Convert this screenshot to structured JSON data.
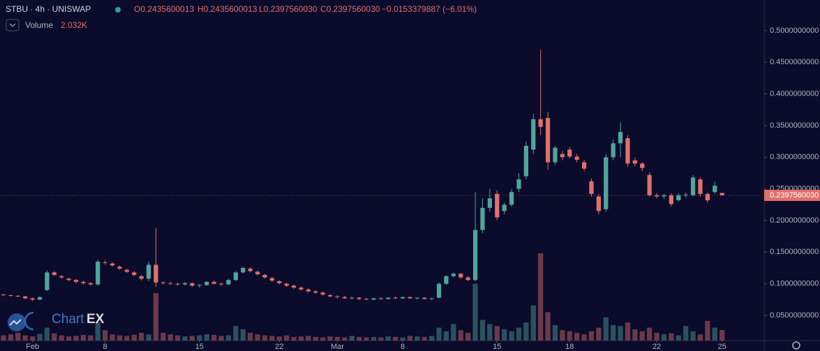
{
  "chart_data": {
    "type": "candlestick",
    "header": {
      "symbol": "STBU · 4h · UNISWAP",
      "ohlc": [
        "O0.2435600013",
        "H0.2435600013",
        "L0.2397560030",
        "C0.2397560030"
      ],
      "change": "−0.0153379887 (−6.01%)",
      "volume_name": "Volume",
      "volume_label": "2.032K"
    },
    "watermark": [
      "Chart",
      "EX"
    ],
    "up_color": "#4fa69b",
    "down_color": "#e0706a",
    "open": [
      0.083,
      0.082,
      0.081,
      0.08,
      0.077,
      0.075,
      0.09,
      0.118,
      0.112,
      0.108,
      0.106,
      0.103,
      0.101,
      0.099,
      0.134,
      0.132,
      0.127,
      0.122,
      0.118,
      0.112,
      0.108,
      0.13,
      0.102,
      0.101,
      0.1,
      0.099,
      0.101,
      0.097,
      0.098,
      0.103,
      0.1,
      0.099,
      0.106,
      0.118,
      0.124,
      0.119,
      0.114,
      0.109,
      0.104,
      0.1,
      0.097,
      0.094,
      0.091,
      0.088,
      0.086,
      0.082,
      0.08,
      0.079,
      0.077,
      0.078,
      0.076,
      0.075,
      0.077,
      0.076,
      0.078,
      0.077,
      0.079,
      0.077,
      0.078,
      0.076,
      0.078,
      0.1,
      0.112,
      0.116,
      0.11,
      0.106,
      0.185,
      0.22,
      0.242,
      0.215,
      0.225,
      0.25,
      0.27,
      0.312,
      0.36,
      0.362,
      0.292,
      0.305,
      0.312,
      0.301,
      0.292,
      0.262,
      0.238,
      0.218,
      0.3,
      0.322,
      0.33,
      0.295,
      0.29,
      0.272,
      0.24,
      0.238,
      0.24,
      0.232,
      0.24,
      0.24,
      0.265,
      0.242,
      0.245,
      0.2435600013
    ],
    "high": [
      0.084,
      0.083,
      0.082,
      0.081,
      0.078,
      0.08,
      0.121,
      0.12,
      0.114,
      0.11,
      0.108,
      0.105,
      0.103,
      0.138,
      0.137,
      0.134,
      0.129,
      0.124,
      0.12,
      0.114,
      0.135,
      0.188,
      0.104,
      0.103,
      0.102,
      0.103,
      0.102,
      0.1,
      0.104,
      0.105,
      0.102,
      0.108,
      0.12,
      0.127,
      0.126,
      0.121,
      0.116,
      0.111,
      0.106,
      0.102,
      0.099,
      0.096,
      0.093,
      0.09,
      0.088,
      0.084,
      0.082,
      0.081,
      0.08,
      0.079,
      0.078,
      0.078,
      0.079,
      0.079,
      0.08,
      0.08,
      0.08,
      0.079,
      0.079,
      0.078,
      0.102,
      0.114,
      0.118,
      0.117,
      0.112,
      0.245,
      0.235,
      0.25,
      0.248,
      0.228,
      0.25,
      0.275,
      0.325,
      0.368,
      0.47,
      0.372,
      0.318,
      0.31,
      0.316,
      0.305,
      0.296,
      0.266,
      0.242,
      0.305,
      0.328,
      0.355,
      0.335,
      0.3,
      0.292,
      0.276,
      0.243,
      0.242,
      0.243,
      0.243,
      0.244,
      0.272,
      0.268,
      0.244,
      0.262,
      0.2435600013
    ],
    "low": [
      0.081,
      0.08,
      0.079,
      0.076,
      0.073,
      0.074,
      0.088,
      0.112,
      0.108,
      0.104,
      0.101,
      0.099,
      0.097,
      0.097,
      0.13,
      0.127,
      0.122,
      0.117,
      0.112,
      0.105,
      0.104,
      0.095,
      0.099,
      0.098,
      0.097,
      0.097,
      0.095,
      0.094,
      0.097,
      0.099,
      0.097,
      0.098,
      0.104,
      0.116,
      0.118,
      0.113,
      0.108,
      0.103,
      0.099,
      0.095,
      0.092,
      0.089,
      0.086,
      0.084,
      0.081,
      0.079,
      0.077,
      0.076,
      0.075,
      0.074,
      0.074,
      0.074,
      0.075,
      0.075,
      0.076,
      0.076,
      0.076,
      0.075,
      0.075,
      0.074,
      0.077,
      0.098,
      0.11,
      0.108,
      0.104,
      0.104,
      0.18,
      0.214,
      0.2,
      0.21,
      0.222,
      0.245,
      0.265,
      0.305,
      0.335,
      0.28,
      0.288,
      0.295,
      0.298,
      0.292,
      0.278,
      0.238,
      0.21,
      0.214,
      0.295,
      0.3,
      0.285,
      0.286,
      0.278,
      0.238,
      0.235,
      0.234,
      0.222,
      0.23,
      0.236,
      0.238,
      0.238,
      0.228,
      0.242,
      0.239756003
    ],
    "close": [
      0.082,
      0.081,
      0.08,
      0.077,
      0.075,
      0.079,
      0.118,
      0.114,
      0.11,
      0.106,
      0.103,
      0.101,
      0.099,
      0.135,
      0.133,
      0.129,
      0.124,
      0.119,
      0.114,
      0.108,
      0.13,
      0.102,
      0.101,
      0.1,
      0.099,
      0.101,
      0.097,
      0.098,
      0.103,
      0.1,
      0.099,
      0.106,
      0.118,
      0.125,
      0.12,
      0.115,
      0.11,
      0.105,
      0.101,
      0.097,
      0.094,
      0.091,
      0.088,
      0.086,
      0.083,
      0.08,
      0.079,
      0.077,
      0.078,
      0.076,
      0.075,
      0.077,
      0.076,
      0.078,
      0.077,
      0.079,
      0.077,
      0.078,
      0.076,
      0.077,
      0.1,
      0.112,
      0.116,
      0.11,
      0.106,
      0.185,
      0.22,
      0.235,
      0.205,
      0.225,
      0.245,
      0.265,
      0.318,
      0.36,
      0.348,
      0.292,
      0.315,
      0.3,
      0.301,
      0.296,
      0.282,
      0.242,
      0.215,
      0.3,
      0.322,
      0.34,
      0.29,
      0.29,
      0.283,
      0.24,
      0.238,
      0.24,
      0.226,
      0.24,
      0.241,
      0.268,
      0.242,
      0.232,
      0.255,
      0.239756003
    ],
    "volume": [
      1.0,
      1.2,
      1.5,
      1.0,
      0.8,
      1.3,
      2.5,
      1.4,
      1.0,
      0.8,
      0.9,
      1.1,
      1.0,
      3.5,
      2.0,
      1.2,
      1.0,
      0.9,
      1.1,
      1.5,
      1.2,
      9.2,
      1.5,
      1.2,
      1.0,
      0.8,
      0.9,
      1.0,
      1.2,
      1.1,
      0.9,
      1.0,
      2.8,
      2.2,
      1.5,
      1.2,
      1.0,
      0.9,
      0.8,
      1.0,
      0.7,
      0.8,
      0.9,
      0.7,
      0.6,
      0.8,
      0.7,
      0.6,
      0.9,
      0.7,
      0.6,
      0.7,
      0.6,
      0.8,
      0.7,
      0.6,
      0.9,
      0.8,
      0.7,
      0.9,
      2.5,
      1.8,
      3.2,
      2.0,
      1.5,
      11.0,
      4.0,
      3.2,
      2.8,
      2.2,
      1.8,
      2.5,
      3.5,
      6.8,
      16.9,
      5.5,
      3.0,
      2.0,
      1.8,
      1.5,
      1.2,
      1.8,
      2.5,
      4.5,
      3.0,
      2.8,
      3.5,
      2.2,
      1.8,
      2.5,
      1.5,
      1.2,
      1.4,
      1.0,
      2.8,
      1.8,
      1.2,
      3.8,
      2.5,
      2.032
    ],
    "xlim": [
      -0.48,
      104.8
    ],
    "xticks": [
      {
        "value": 4,
        "label": "Feb"
      },
      {
        "value": 14,
        "label": "8"
      },
      {
        "value": 27,
        "label": "15"
      },
      {
        "value": 38,
        "label": "22"
      },
      {
        "value": 46,
        "label": "Mar"
      },
      {
        "value": 55,
        "label": "8"
      },
      {
        "value": 68,
        "label": "15"
      },
      {
        "value": 78,
        "label": "18"
      },
      {
        "value": 90,
        "label": "22"
      },
      {
        "value": 99,
        "label": "25"
      }
    ],
    "ylim": [
      0.0103,
      0.5485
    ],
    "yticks": [
      {
        "value": 0.05,
        "label": "0.0500000000"
      },
      {
        "value": 0.1,
        "label": "0.1000000000"
      },
      {
        "value": 0.15,
        "label": "0.1500000000"
      },
      {
        "value": 0.2,
        "label": "0.2000000000"
      },
      {
        "value": 0.25,
        "label": "0.2500000000"
      },
      {
        "value": 0.3,
        "label": "0.3000000000"
      },
      {
        "value": 0.35,
        "label": "0.3500000000"
      },
      {
        "value": 0.4,
        "label": "0.4000000000"
      },
      {
        "value": 0.45,
        "label": "0.4500000000"
      },
      {
        "value": 0.5,
        "label": "0.5000000000"
      }
    ],
    "last_price": {
      "value": 0.239756003,
      "label": "0.2397560030"
    }
  }
}
